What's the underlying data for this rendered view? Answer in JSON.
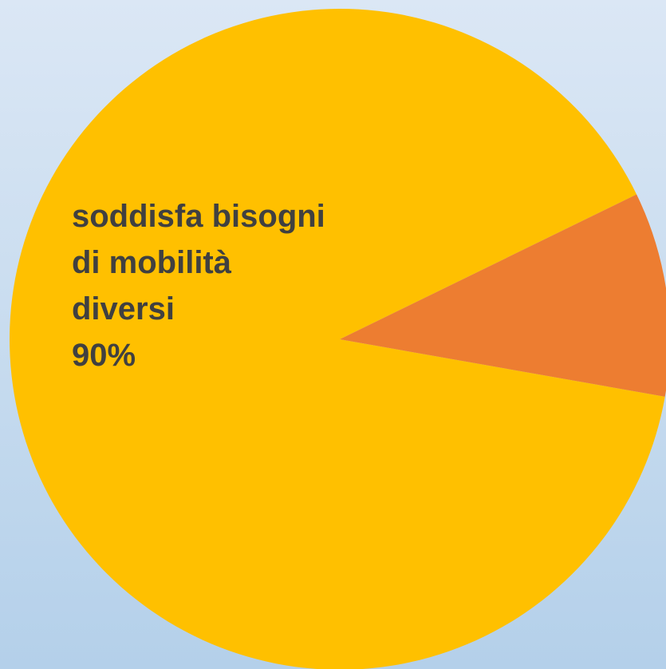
{
  "chart_data": {
    "type": "pie",
    "slices": [
      {
        "label_lines": [
          "soddisfa bisogni",
          "di mobilità",
          "diversi",
          "90%"
        ],
        "value": 90,
        "color": "#FFC000"
      },
      {
        "label_lines": [],
        "value": 10,
        "color": "#ED7D31"
      }
    ],
    "legend": "none"
  }
}
